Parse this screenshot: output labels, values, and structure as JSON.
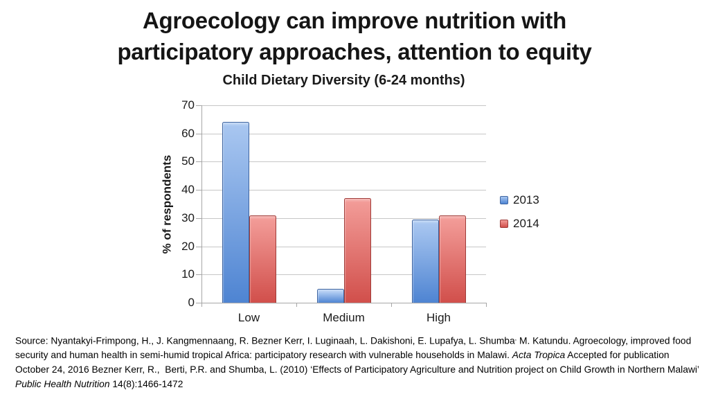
{
  "slide": {
    "title": "Agroecology can improve nutrition with participatory approaches, attention to equity",
    "background": "#FFFFFF"
  },
  "chart_data": {
    "type": "bar",
    "title": "Child Dietary Diversity (6-24 months)",
    "xlabel": "",
    "ylabel": "% of respondents",
    "categories": [
      "Low",
      "Medium",
      "High"
    ],
    "series": [
      {
        "name": "2013",
        "values": [
          64,
          5,
          29.5
        ],
        "color": "#4E84D2",
        "color_light": "#A8C6F0",
        "color_cap": "#CADDF6",
        "border": "#3E64A0"
      },
      {
        "name": "2014",
        "values": [
          31,
          37,
          31
        ],
        "color": "#D14F4B",
        "color_light": "#F29B97",
        "color_cap": "#F7BDBA",
        "border": "#9E3B38"
      }
    ],
    "ylim": [
      0,
      70
    ],
    "ytick_step": 10,
    "grid": true,
    "legend_position": "right"
  },
  "source": {
    "segments": [
      {
        "text": "Source: Nyantakyi-Frimpong, H., J. Kangmennaang, R. Bezner Kerr, I. Luginaah, L. Dakishoni, E. Lupafya, L. Shumba"
      },
      {
        "text": ",",
        "sup": true
      },
      {
        "text": " M. Katundu. Agroecology, improved food security and human health in semi-humid tropical Africa: participatory research with vulnerable households in Malawi. "
      },
      {
        "text": "Acta Tropica",
        "italic": true
      },
      {
        "text": " Accepted for publication October 24, 2016 Bezner Kerr, R.,  Berti, P.R. and Shumba, L. (2010) ‘Effects of Participatory Agriculture and Nutrition project on Child Growth in Northern Malawi’ "
      },
      {
        "text": "Public Health Nutrition",
        "italic": true
      },
      {
        "text": " 14(8):1466-1472"
      }
    ]
  }
}
